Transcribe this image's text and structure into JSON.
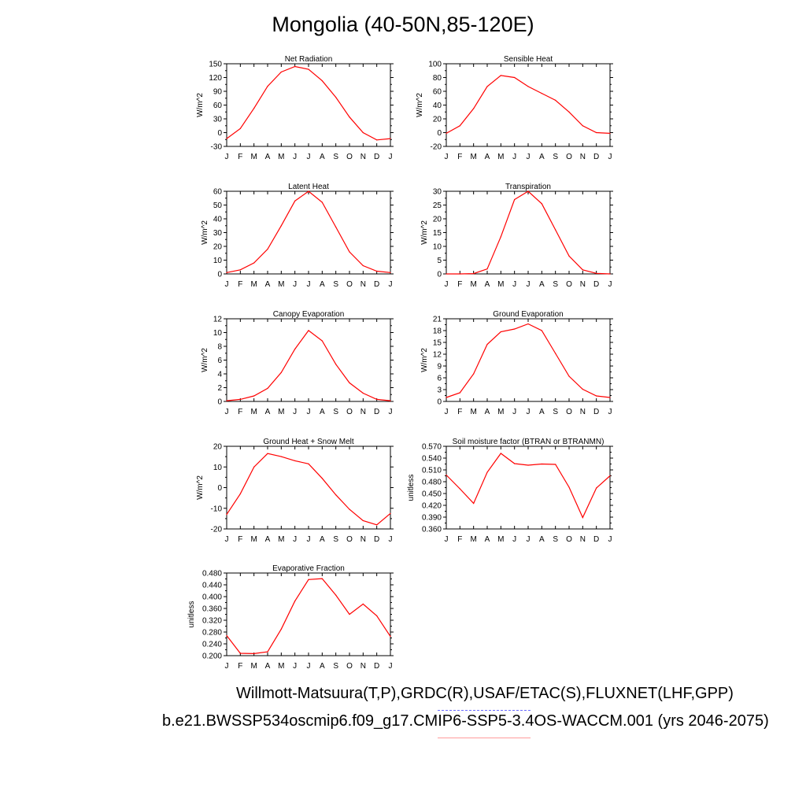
{
  "title": "Mongolia (40-50N,85-120E)",
  "line_color": "#ff0000",
  "footer": {
    "observations": "Willmott-Matsuura(T,P),GRDC(R),USAF/ETAC(S),FLUXNET(LHF,GPP)",
    "model": "b.e21.BWSSP534oscmip6.f09_g17.CMIP6-SSP5-3.4OS-WACCM.001 (yrs 2046-2075)",
    "observations_line_color": "#6a6cff",
    "model_line_color": "#ff9c9c"
  },
  "chart_data": [
    {
      "type": "line",
      "title": "Net Radiation",
      "ylabel": "W/m^2",
      "categories": [
        "J",
        "F",
        "M",
        "A",
        "M",
        "J",
        "J",
        "A",
        "S",
        "O",
        "N",
        "D",
        "J"
      ],
      "ylim": [
        -30,
        150
      ],
      "yticks": [
        -30,
        0,
        30,
        60,
        90,
        120,
        150
      ],
      "ytick_labels": [
        "-30",
        "0",
        "30",
        "60",
        "90",
        "120",
        "150"
      ],
      "values": [
        -13,
        9,
        53,
        101,
        132,
        144,
        138,
        113,
        77,
        34,
        0,
        -16,
        -13
      ]
    },
    {
      "type": "line",
      "title": "Sensible Heat",
      "ylabel": "W/m^2",
      "categories": [
        "J",
        "F",
        "M",
        "A",
        "M",
        "J",
        "J",
        "A",
        "S",
        "O",
        "N",
        "D",
        "J"
      ],
      "ylim": [
        -20,
        100
      ],
      "yticks": [
        -20,
        0,
        20,
        40,
        60,
        80,
        100
      ],
      "ytick_labels": [
        "-20",
        "0",
        "20",
        "40",
        "60",
        "80",
        "100"
      ],
      "values": [
        -1,
        10,
        35,
        67,
        83,
        80,
        67,
        57,
        47,
        30,
        10,
        0,
        -1
      ]
    },
    {
      "type": "line",
      "title": "Latent Heat",
      "ylabel": "W/m^2",
      "categories": [
        "J",
        "F",
        "M",
        "A",
        "M",
        "J",
        "J",
        "A",
        "S",
        "O",
        "N",
        "D",
        "J"
      ],
      "ylim": [
        0,
        60
      ],
      "yticks": [
        0,
        10,
        20,
        30,
        40,
        50,
        60
      ],
      "ytick_labels": [
        "0",
        "10",
        "20",
        "30",
        "40",
        "50",
        "60"
      ],
      "values": [
        1,
        3,
        8,
        18,
        35,
        53,
        60,
        52,
        34,
        16,
        6,
        2,
        1
      ]
    },
    {
      "type": "line",
      "title": "Transpiration",
      "ylabel": "W/m^2",
      "categories": [
        "J",
        "F",
        "M",
        "A",
        "M",
        "J",
        "J",
        "A",
        "S",
        "O",
        "N",
        "D",
        "J"
      ],
      "ylim": [
        0,
        30
      ],
      "yticks": [
        0,
        5,
        10,
        15,
        20,
        25,
        30
      ],
      "ytick_labels": [
        "0",
        "5",
        "10",
        "15",
        "20",
        "25",
        "30"
      ],
      "values": [
        0,
        0,
        0.1,
        1.8,
        13.5,
        27,
        30,
        25.5,
        16,
        6.5,
        1.5,
        0.2,
        0
      ]
    },
    {
      "type": "line",
      "title": "Canopy Evaporation",
      "ylabel": "W/m^2",
      "categories": [
        "J",
        "F",
        "M",
        "A",
        "M",
        "J",
        "J",
        "A",
        "S",
        "O",
        "N",
        "D",
        "J"
      ],
      "ylim": [
        0,
        12
      ],
      "yticks": [
        0,
        2,
        4,
        6,
        8,
        10,
        12
      ],
      "ytick_labels": [
        "0",
        "2",
        "4",
        "6",
        "8",
        "10",
        "12"
      ],
      "values": [
        0.1,
        0.3,
        0.8,
        1.9,
        4.2,
        7.6,
        10.3,
        8.8,
        5.4,
        2.7,
        1.2,
        0.3,
        0.1
      ]
    },
    {
      "type": "line",
      "title": "Ground Evaporation",
      "ylabel": "W/m^2",
      "categories": [
        "J",
        "F",
        "M",
        "A",
        "M",
        "J",
        "J",
        "A",
        "S",
        "O",
        "N",
        "D",
        "J"
      ],
      "ylim": [
        0,
        21
      ],
      "yticks": [
        0,
        3,
        6,
        9,
        12,
        15,
        18,
        21
      ],
      "ytick_labels": [
        "0",
        "3",
        "6",
        "9",
        "12",
        "15",
        "18",
        "21"
      ],
      "values": [
        1,
        2.2,
        7,
        14.5,
        17.7,
        18.4,
        19.7,
        18,
        12.2,
        6.4,
        3.1,
        1.4,
        1
      ]
    },
    {
      "type": "line",
      "title": "Ground Heat + Snow Melt",
      "ylabel": "W/m^2",
      "categories": [
        "J",
        "F",
        "M",
        "A",
        "M",
        "J",
        "J",
        "A",
        "S",
        "O",
        "N",
        "D",
        "J"
      ],
      "ylim": [
        -20,
        20
      ],
      "yticks": [
        -20,
        -10,
        0,
        10,
        20
      ],
      "ytick_labels": [
        "-20",
        "-10",
        "0",
        "10",
        "20"
      ],
      "values": [
        -13,
        -3,
        10,
        16.5,
        15,
        13,
        11.5,
        4.5,
        -3.5,
        -10.5,
        -16,
        -18,
        -12.5
      ]
    },
    {
      "type": "line",
      "title": "Soil moisture factor (BTRAN or BTRANMN)",
      "ylabel": "unitless",
      "categories": [
        "J",
        "F",
        "M",
        "A",
        "M",
        "J",
        "J",
        "A",
        "S",
        "O",
        "N",
        "D",
        "J"
      ],
      "ylim": [
        0.36,
        0.57
      ],
      "yticks": [
        0.36,
        0.39,
        0.42,
        0.45,
        0.48,
        0.51,
        0.54,
        0.57
      ],
      "ytick_labels": [
        "0.360",
        "0.390",
        "0.420",
        "0.450",
        "0.480",
        "0.510",
        "0.540",
        "0.570"
      ],
      "values": [
        0.497,
        0.462,
        0.425,
        0.504,
        0.552,
        0.526,
        0.522,
        0.525,
        0.524,
        0.466,
        0.389,
        0.464,
        0.495
      ]
    },
    {
      "type": "line",
      "title": "Evaporative Fraction",
      "ylabel": "unitless",
      "categories": [
        "J",
        "F",
        "M",
        "A",
        "M",
        "J",
        "J",
        "A",
        "S",
        "O",
        "N",
        "D",
        "J"
      ],
      "ylim": [
        0.2,
        0.48
      ],
      "yticks": [
        0.2,
        0.24,
        0.28,
        0.32,
        0.36,
        0.4,
        0.44,
        0.48
      ],
      "ytick_labels": [
        "0.200",
        "0.240",
        "0.280",
        "0.320",
        "0.360",
        "0.400",
        "0.440",
        "0.480"
      ],
      "values": [
        0.268,
        0.208,
        0.207,
        0.213,
        0.29,
        0.385,
        0.458,
        0.461,
        0.405,
        0.34,
        0.375,
        0.335,
        0.265
      ]
    }
  ]
}
